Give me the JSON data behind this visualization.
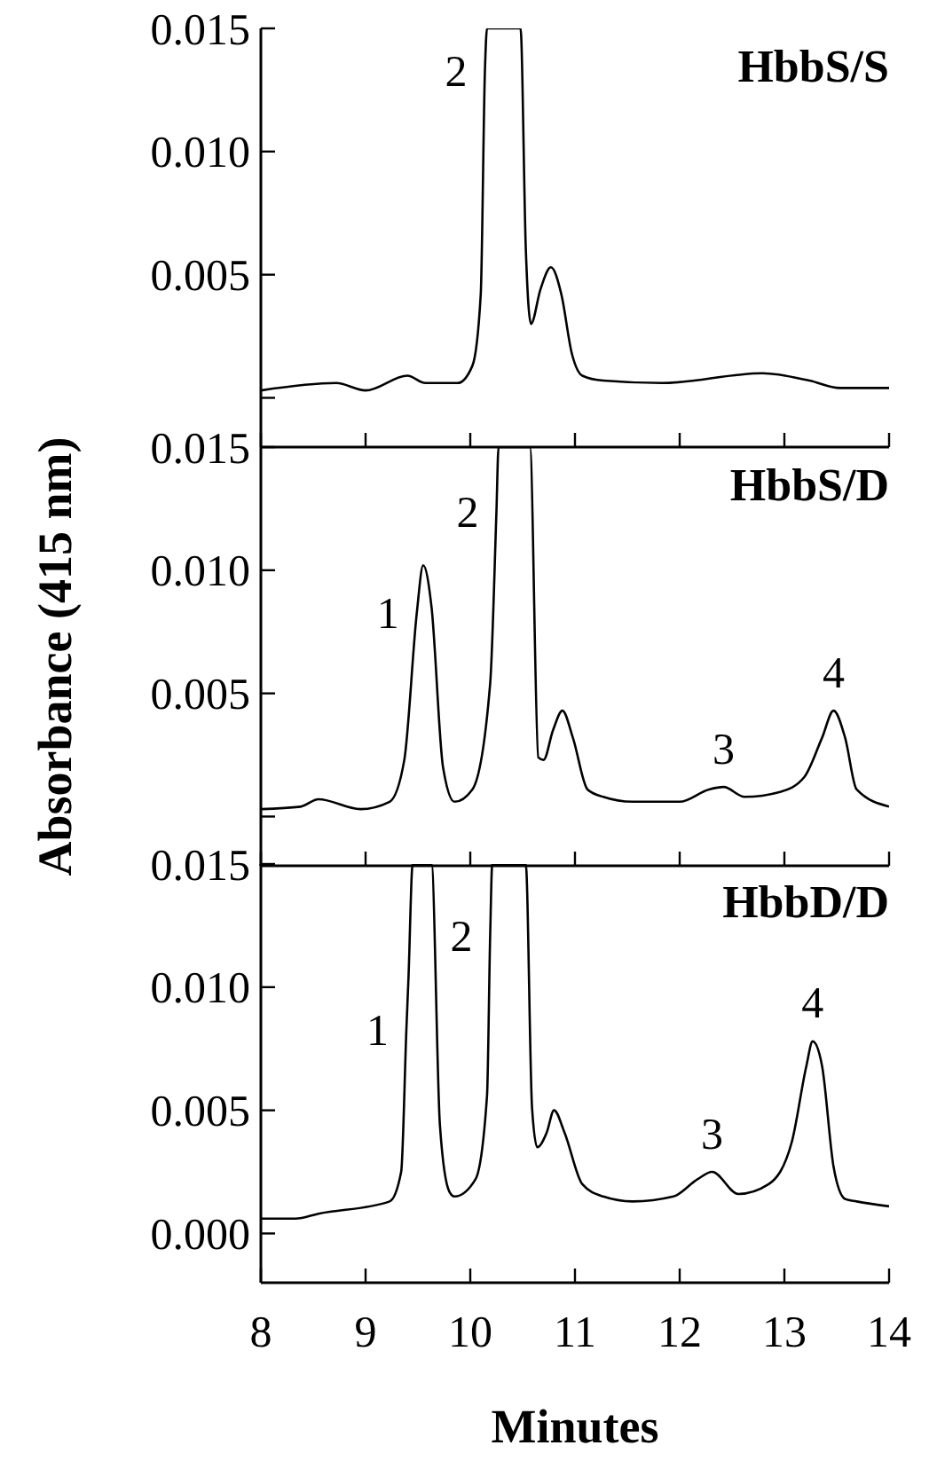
{
  "chart_data": [
    {
      "type": "line",
      "title": "HbbS/S",
      "xlim": [
        8,
        14
      ],
      "xticks": [
        8,
        9,
        10,
        11,
        12,
        13,
        14
      ],
      "ylim": [
        -0.002,
        0.015
      ],
      "yticks": [
        {
          "value": 0,
          "label": null
        },
        {
          "value": 0.005,
          "label": "0.005"
        },
        {
          "value": 0.01,
          "label": "0.010"
        },
        {
          "value": 0.015,
          "label": "0.015"
        }
      ],
      "tick_labels": "y",
      "series": [
        {
          "color": "#000000",
          "x": [
            8,
            8.72,
            9.0,
            9.4,
            9.57,
            9.88,
            10.02,
            10.1,
            10.14,
            10.16,
            10.48,
            10.53,
            10.58,
            10.67,
            10.77,
            10.87,
            10.97,
            11.07,
            11.27,
            11.83,
            12.79,
            13.24,
            13.53,
            14
          ],
          "values": [
            0.0003,
            0.0006,
            0.0003,
            0.0009,
            0.0006,
            0.0006,
            0.0013,
            0.0042,
            0.0133,
            0.015,
            0.015,
            0.0061,
            0.003,
            0.0044,
            0.0053,
            0.0042,
            0.0018,
            0.0009,
            0.0007,
            0.0006,
            0.001,
            0.0007,
            0.0004,
            0.0004
          ]
        }
      ],
      "annotations": [
        {
          "text": "2",
          "x": 10.14,
          "y": 0.0133
        }
      ]
    },
    {
      "type": "line",
      "title": "HbbS/D",
      "ylabel": "Absorbance (415 nm)",
      "xlim": [
        8,
        14
      ],
      "xticks": [
        8,
        9,
        10,
        11,
        12,
        13,
        14
      ],
      "ylim": [
        -0.002,
        0.015
      ],
      "yticks": [
        {
          "value": 0,
          "label": null
        },
        {
          "value": 0.005,
          "label": "0.005"
        },
        {
          "value": 0.01,
          "label": "0.010"
        },
        {
          "value": 0.015,
          "label": "0.015"
        }
      ],
      "tick_labels": "y",
      "series": [
        {
          "color": "#000000",
          "x": [
            8,
            8.38,
            8.55,
            8.95,
            9.23,
            9.37,
            9.49,
            9.55,
            9.63,
            9.74,
            9.85,
            10.02,
            10.19,
            10.25,
            10.27,
            10.57,
            10.65,
            10.7,
            10.79,
            10.88,
            10.98,
            11.12,
            11.27,
            11.55,
            12.0,
            12.28,
            12.42,
            12.62,
            12.96,
            13.19,
            13.36,
            13.47,
            13.58,
            13.69,
            14
          ],
          "values": [
            0.0003,
            0.0004,
            0.0007,
            0.0003,
            0.0006,
            0.0023,
            0.0083,
            0.0102,
            0.0085,
            0.002,
            0.0006,
            0.0011,
            0.0054,
            0.0124,
            0.015,
            0.015,
            0.0024,
            0.0023,
            0.0035,
            0.0043,
            0.0032,
            0.0011,
            0.0008,
            0.0006,
            0.0006,
            0.0011,
            0.0012,
            0.0008,
            0.001,
            0.0016,
            0.0032,
            0.0043,
            0.0032,
            0.0011,
            0.0004
          ]
        }
      ],
      "annotations": [
        {
          "text": "1",
          "x": 9.49,
          "y": 0.0083
        },
        {
          "text": "2",
          "x": 10.25,
          "y": 0.0124
        },
        {
          "text": "3",
          "x": 12.42,
          "y": 0.0012
        },
        {
          "text": "4",
          "x": 13.47,
          "y": 0.0043
        }
      ]
    },
    {
      "type": "line",
      "title": "HbbD/D",
      "xlabel": "Minutes",
      "xlim": [
        8,
        14
      ],
      "xticks": [
        8,
        9,
        10,
        11,
        12,
        13,
        14
      ],
      "ylim": [
        -0.002,
        0.015
      ],
      "yticks": [
        {
          "value": 0,
          "label": "0.000"
        },
        {
          "value": 0.005,
          "label": "0.005"
        },
        {
          "value": 0.01,
          "label": "0.010"
        },
        {
          "value": 0.015,
          "label": "0.015"
        }
      ],
      "series": [
        {
          "color": "#000000",
          "x": [
            8,
            8.33,
            8.55,
            9.23,
            9.34,
            9.39,
            9.41,
            9.45,
            9.63,
            9.71,
            9.8,
            9.85,
            10.05,
            10.16,
            10.19,
            10.21,
            10.53,
            10.59,
            10.64,
            10.73,
            10.8,
            10.9,
            11.07,
            11.27,
            11.55,
            11.94,
            12.17,
            12.31,
            12.56,
            12.85,
            13.07,
            13.21,
            13.27,
            13.36,
            13.47,
            13.58,
            13.69,
            14
          ],
          "values": [
            0.0006,
            0.0006,
            0.0008,
            0.0013,
            0.0025,
            0.0083,
            0.0104,
            0.015,
            0.015,
            0.0044,
            0.0017,
            0.0015,
            0.0022,
            0.0056,
            0.0121,
            0.015,
            0.015,
            0.0051,
            0.0035,
            0.0041,
            0.005,
            0.0041,
            0.002,
            0.0015,
            0.0013,
            0.0015,
            0.0022,
            0.0025,
            0.0016,
            0.002,
            0.0037,
            0.0068,
            0.0078,
            0.0068,
            0.0027,
            0.0014,
            0.0013,
            0.0011
          ]
        }
      ],
      "annotations": [
        {
          "text": "1",
          "x": 9.39,
          "y": 0.0083
        },
        {
          "text": "2",
          "x": 10.19,
          "y": 0.0121
        },
        {
          "text": "3",
          "x": 12.31,
          "y": 0.0025
        },
        {
          "text": "4",
          "x": 13.27,
          "y": 0.0078
        }
      ]
    }
  ]
}
